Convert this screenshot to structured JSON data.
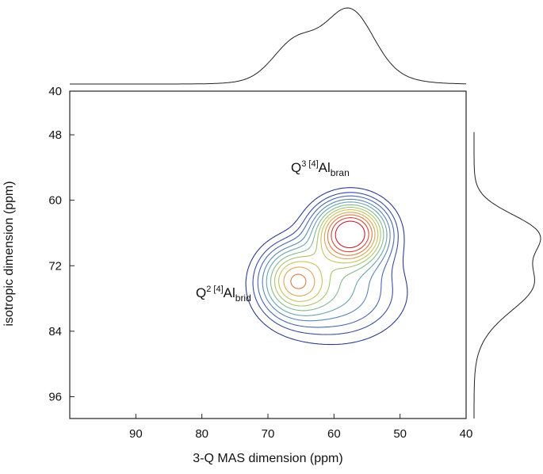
{
  "chart_data": {
    "type": "contour",
    "x_label": "3-Q MAS dimension (ppm)",
    "y_label": "isotropic dimension (ppm)",
    "xlim": [
      100,
      40
    ],
    "xticks": [
      90,
      80,
      70,
      60,
      50,
      40
    ],
    "ylim": [
      40,
      100
    ],
    "yticks": [
      40,
      48,
      60,
      72,
      84,
      96
    ],
    "peaks": [
      {
        "x": 57.5,
        "y": 66,
        "height": 1,
        "x_width": 3.4,
        "y_width": 3.6
      },
      {
        "x": 66,
        "y": 74.5,
        "height": 0.5,
        "x_width": 3.2,
        "y_width": 4
      },
      {
        "x": 60,
        "y": 77,
        "height": 0.3,
        "x_width": 6.5,
        "y_width": 5.5
      }
    ],
    "levels": [
      0.07,
      0.12,
      0.17,
      0.23,
      0.29,
      0.36,
      0.43,
      0.5,
      0.58,
      0.66,
      0.75,
      0.85
    ],
    "level_colors": [
      "#2b3a8f",
      "#3a4c9e",
      "#4a66ad",
      "#5a86b5",
      "#6aa3ad",
      "#84b98f",
      "#a8c46f",
      "#c9c25c",
      "#dca552",
      "#d97a44",
      "#cc4a3a",
      "#c02030"
    ],
    "line_color": "#222222",
    "annotations": [
      {
        "main": "Q",
        "sup": "3 [4]",
        "element": "Al",
        "sub": "bran"
      },
      {
        "main": "Q",
        "sup": "2 [4]",
        "element": "Al",
        "sub": "brid"
      }
    ]
  }
}
